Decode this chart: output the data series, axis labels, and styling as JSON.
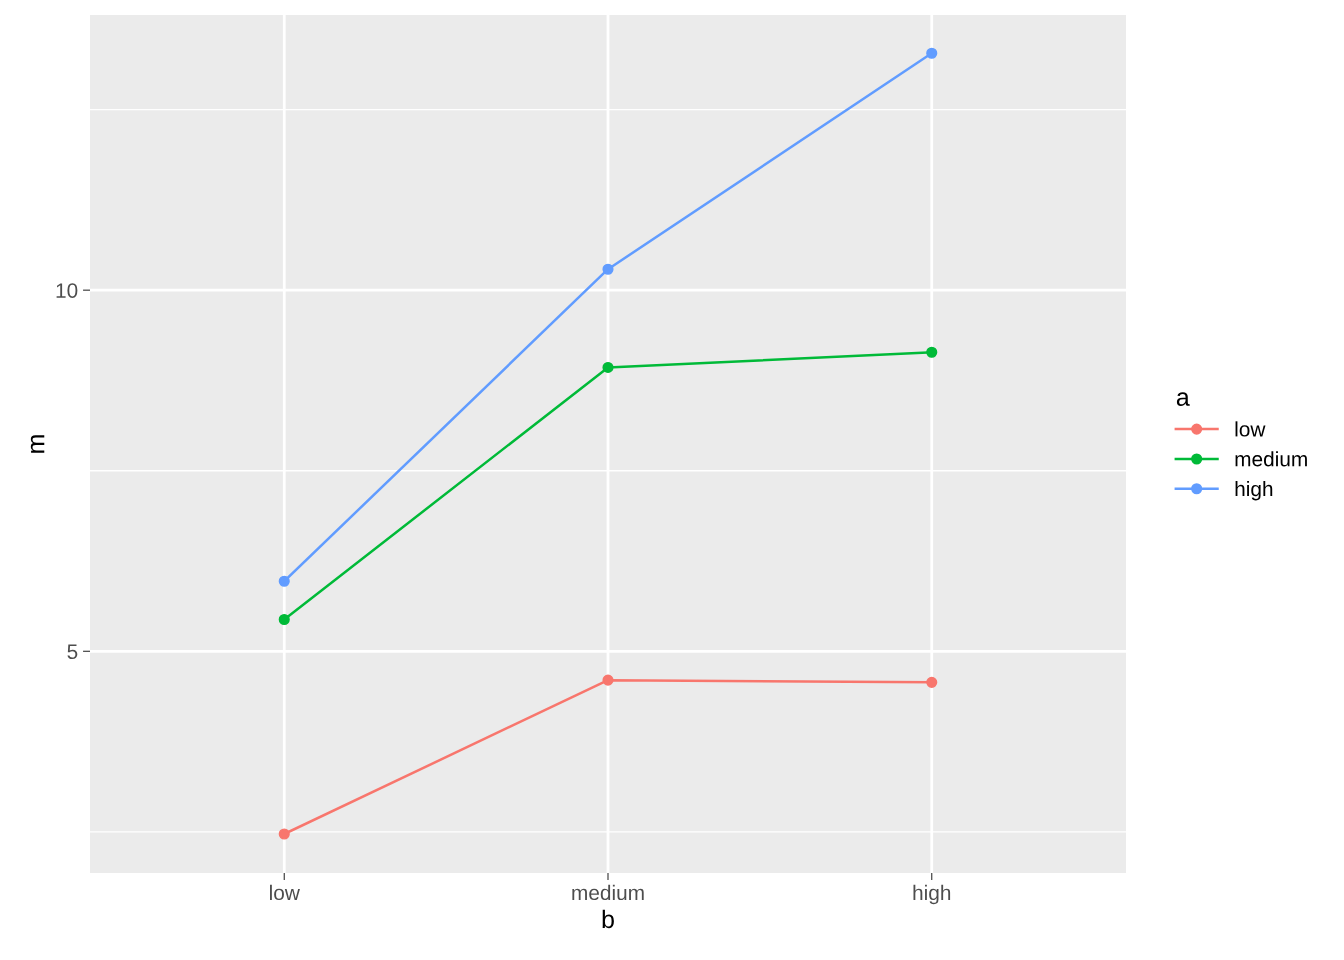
{
  "chart_data": {
    "type": "line",
    "xlabel": "b",
    "ylabel": "m",
    "legend_title": "a",
    "categories": [
      "low",
      "medium",
      "high"
    ],
    "series": [
      {
        "name": "low",
        "color": "#f8766d",
        "values": [
          2.47,
          4.6,
          4.57
        ]
      },
      {
        "name": "medium",
        "color": "#00ba38",
        "values": [
          5.44,
          8.93,
          9.14
        ]
      },
      {
        "name": "high",
        "color": "#619cff",
        "values": [
          5.97,
          10.29,
          13.28
        ]
      }
    ],
    "ylim": [
      1.93,
      13.81
    ],
    "yticks": [
      {
        "value": 2.5,
        "label": null
      },
      5,
      {
        "value": 7.5,
        "label": null
      },
      10,
      {
        "value": 12.5,
        "label": null
      }
    ],
    "grid": true,
    "legend": "right",
    "marker": "circle",
    "line_style": "solid"
  }
}
